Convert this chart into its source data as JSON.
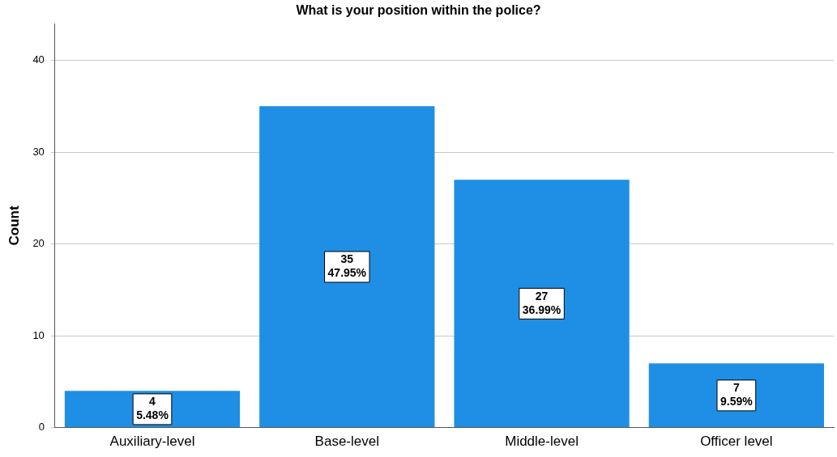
{
  "chart_data": {
    "type": "bar",
    "title": "What is your position within the police?",
    "ylabel": "Count",
    "categories": [
      "Auxiliary-level",
      "Base-level",
      "Middle-level",
      "Officer level"
    ],
    "values": [
      4,
      35,
      27,
      7
    ],
    "value_labels": [
      "4\n5.48%",
      "35\n47.95%",
      "27\n36.99%",
      "7\n9.59%"
    ],
    "color": "#1f8fe5",
    "ylim": [
      0,
      44
    ],
    "yticks": [
      0,
      10,
      20,
      30,
      40
    ],
    "grid": "y",
    "legend": false
  }
}
